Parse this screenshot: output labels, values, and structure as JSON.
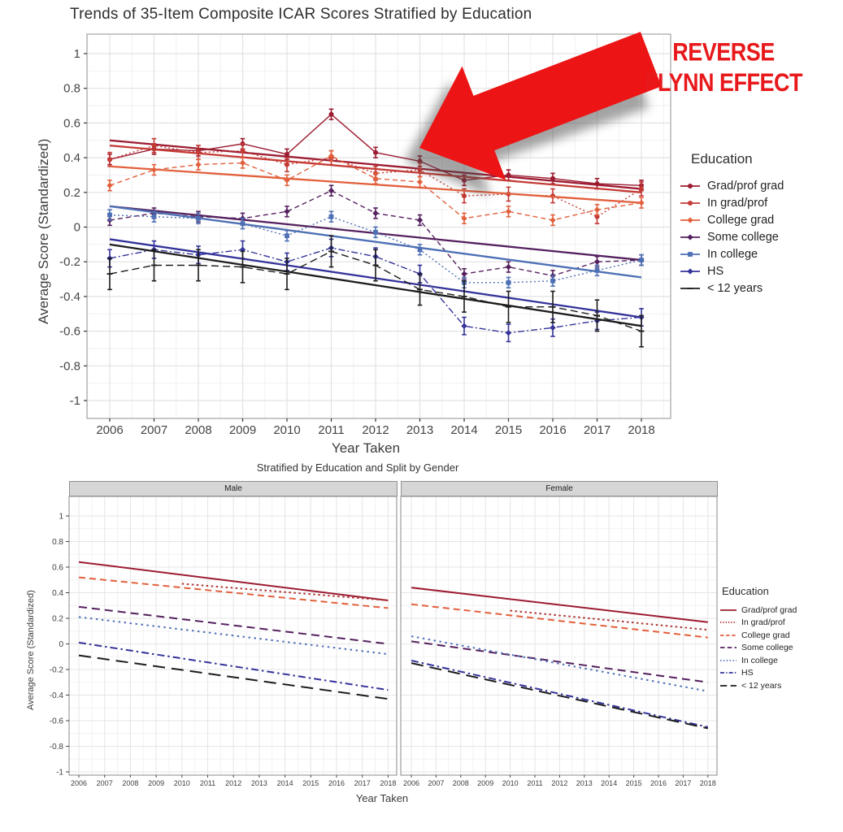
{
  "annotation": {
    "line1": "REVERSE",
    "line2": "FLYNN EFFECT",
    "color": "#e8191c",
    "arrow_color": "#ec1414"
  },
  "chart_data": [
    {
      "type": "line",
      "title": "Trends of 35-Item Composite ICAR Scores Stratified by Education",
      "xlabel": "Year Taken",
      "ylabel": "Average Score (Standardized)",
      "legend_title": "Education",
      "legend_position": "right",
      "grid": true,
      "error_bars": true,
      "ylim": [
        -1,
        1
      ],
      "yticks": [
        1,
        0.8,
        0.6,
        0.4,
        0.2,
        0,
        -0.2,
        -0.4,
        -0.6,
        -0.8,
        -1
      ],
      "x": [
        2006,
        2007,
        2008,
        2009,
        2010,
        2011,
        2012,
        2013,
        2014,
        2015,
        2016,
        2017,
        2018
      ],
      "series": [
        {
          "name": "Grad/prof grad",
          "color": "#9c1b31",
          "dash": "",
          "marker": "circle",
          "se": 0.03,
          "values": [
            0.39,
            0.45,
            0.44,
            0.48,
            0.42,
            0.65,
            0.43,
            0.38,
            0.27,
            0.3,
            0.28,
            0.25,
            0.24
          ],
          "trend": [
            0.5,
            0.22
          ]
        },
        {
          "name": "In grad/prof",
          "color": "#c43a35",
          "dash": "2 3",
          "marker": "circle",
          "se": 0.04,
          "values": [
            0.39,
            0.47,
            0.43,
            0.44,
            0.36,
            0.4,
            0.31,
            0.33,
            0.18,
            0.19,
            0.18,
            0.06,
            0.22
          ],
          "trend": [
            0.47,
            0.2
          ]
        },
        {
          "name": "College grad",
          "color": "#e2603d",
          "dash": "6 4",
          "marker": "diamond",
          "se": 0.03,
          "values": [
            0.24,
            0.33,
            0.36,
            0.37,
            0.27,
            0.41,
            0.28,
            0.26,
            0.05,
            0.09,
            0.04,
            0.1,
            0.14
          ],
          "trend": [
            0.35,
            0.14
          ]
        },
        {
          "name": "Some college",
          "color": "#54205e",
          "dash": "6 4",
          "marker": "diamond",
          "se": 0.03,
          "values": [
            0.04,
            0.08,
            0.06,
            0.05,
            0.09,
            0.21,
            0.08,
            0.04,
            -0.27,
            -0.23,
            -0.28,
            -0.2,
            -0.19
          ],
          "trend": [
            0.12,
            -0.19
          ]
        },
        {
          "name": "In college",
          "color": "#4d6fb4",
          "dash": "2 3",
          "marker": "square",
          "se": 0.03,
          "values": [
            0.07,
            0.06,
            0.05,
            0.02,
            -0.05,
            0.06,
            -0.03,
            -0.13,
            -0.32,
            -0.32,
            -0.31,
            -0.25,
            -0.19
          ],
          "trend": [
            0.12,
            -0.29
          ]
        },
        {
          "name": "HS",
          "color": "#34339a",
          "dash": "8 3 2 3",
          "marker": "diamond",
          "se": 0.05,
          "values": [
            -0.18,
            -0.13,
            -0.16,
            -0.13,
            -0.2,
            -0.12,
            -0.17,
            -0.27,
            -0.57,
            -0.61,
            -0.58,
            -0.54,
            -0.52
          ],
          "trend": [
            -0.07,
            -0.52
          ]
        },
        {
          "name": "< 12 years",
          "color": "#1c1c1c",
          "dash": "9 5",
          "marker": "plus",
          "se": 0.09,
          "values": [
            -0.27,
            -0.22,
            -0.22,
            -0.23,
            -0.27,
            -0.14,
            -0.22,
            -0.36,
            -0.4,
            -0.46,
            -0.46,
            -0.51,
            -0.6
          ],
          "trend": [
            -0.1,
            -0.57
          ]
        }
      ]
    },
    {
      "type": "line",
      "title": "Stratified by Education and Split by Gender",
      "xlabel": "Year Taken",
      "ylabel": "Average Score (Standardized)",
      "legend_title": "Education",
      "legend_position": "right",
      "grid": true,
      "ylim": [
        -1,
        1
      ],
      "yticks": [
        1,
        0.8,
        0.6,
        0.4,
        0.2,
        0,
        -0.2,
        -0.4,
        -0.6,
        -0.8,
        -1
      ],
      "x": [
        2006,
        2007,
        2008,
        2009,
        2010,
        2011,
        2012,
        2013,
        2014,
        2015,
        2016,
        2017,
        2018
      ],
      "facets": [
        {
          "label": "Male",
          "series": [
            {
              "name": "Grad/prof grad",
              "color": "#9c1b31",
              "dash": "",
              "x0": 2006,
              "x1": 2018,
              "y0": 0.64,
              "y1": 0.34
            },
            {
              "name": "In grad/prof",
              "color": "#b03434",
              "dash": "2.5 3.5",
              "x0": 2010,
              "x1": 2018,
              "y0": 0.47,
              "y1": 0.34
            },
            {
              "name": "College grad",
              "color": "#e2603d",
              "dash": "8 5",
              "x0": 2006,
              "x1": 2018,
              "y0": 0.52,
              "y1": 0.28
            },
            {
              "name": "Some college",
              "color": "#54205e",
              "dash": "10 6",
              "x0": 2006,
              "x1": 2018,
              "y0": 0.29,
              "y1": 0.0
            },
            {
              "name": "In college",
              "color": "#4d6fb4",
              "dash": "2.5 4.5",
              "x0": 2006,
              "x1": 2018,
              "y0": 0.21,
              "y1": -0.08
            },
            {
              "name": "HS",
              "color": "#34339a",
              "dash": "9 4 2.5 4",
              "x0": 2006,
              "x1": 2018,
              "y0": 0.01,
              "y1": -0.36
            },
            {
              "name": "< 12 years",
              "color": "#1c1c1c",
              "dash": "15 8",
              "x0": 2006,
              "x1": 2018,
              "y0": -0.09,
              "y1": -0.43
            }
          ]
        },
        {
          "label": "Female",
          "series": [
            {
              "name": "Grad/prof grad",
              "color": "#9c1b31",
              "dash": "",
              "x0": 2006,
              "x1": 2018,
              "y0": 0.44,
              "y1": 0.17
            },
            {
              "name": "In grad/prof",
              "color": "#b03434",
              "dash": "2.5 3.5",
              "x0": 2010,
              "x1": 2018,
              "y0": 0.26,
              "y1": 0.11
            },
            {
              "name": "College grad",
              "color": "#e2603d",
              "dash": "8 5",
              "x0": 2006,
              "x1": 2018,
              "y0": 0.31,
              "y1": 0.05
            },
            {
              "name": "Some college",
              "color": "#54205e",
              "dash": "10 6",
              "x0": 2006,
              "x1": 2018,
              "y0": 0.02,
              "y1": -0.3
            },
            {
              "name": "In college",
              "color": "#4d6fb4",
              "dash": "2.5 4.5",
              "x0": 2006,
              "x1": 2018,
              "y0": 0.06,
              "y1": -0.37
            },
            {
              "name": "HS",
              "color": "#34339a",
              "dash": "9 4 2.5 4",
              "x0": 2006,
              "x1": 2018,
              "y0": -0.13,
              "y1": -0.65
            },
            {
              "name": "< 12 years",
              "color": "#1c1c1c",
              "dash": "15 8",
              "x0": 2006,
              "x1": 2018,
              "y0": -0.15,
              "y1": -0.66
            }
          ]
        }
      ]
    }
  ]
}
